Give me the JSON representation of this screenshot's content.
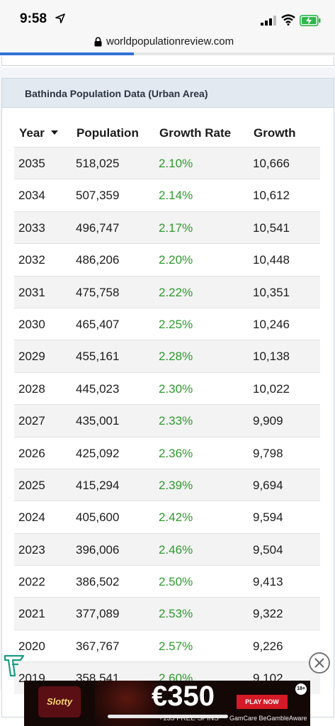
{
  "status_bar": {
    "time": "9:58"
  },
  "browser": {
    "url": "worldpopulationreview.com",
    "load_progress": 0.4
  },
  "card": {
    "title": "Bathinda Population Data (Urban Area)",
    "columns": [
      "Year",
      "Population",
      "Growth Rate",
      "Growth"
    ],
    "sort_column": "Year",
    "sort_direction": "descending",
    "rows": [
      {
        "year": "2035",
        "population": "518,025",
        "rate": "2.10%",
        "growth": "10,666"
      },
      {
        "year": "2034",
        "population": "507,359",
        "rate": "2.14%",
        "growth": "10,612"
      },
      {
        "year": "2033",
        "population": "496,747",
        "rate": "2.17%",
        "growth": "10,541"
      },
      {
        "year": "2032",
        "population": "486,206",
        "rate": "2.20%",
        "growth": "10,448"
      },
      {
        "year": "2031",
        "population": "475,758",
        "rate": "2.22%",
        "growth": "10,351"
      },
      {
        "year": "2030",
        "population": "465,407",
        "rate": "2.25%",
        "growth": "10,246"
      },
      {
        "year": "2029",
        "population": "455,161",
        "rate": "2.28%",
        "growth": "10,138"
      },
      {
        "year": "2028",
        "population": "445,023",
        "rate": "2.30%",
        "growth": "10,022"
      },
      {
        "year": "2027",
        "population": "435,001",
        "rate": "2.33%",
        "growth": "9,909"
      },
      {
        "year": "2026",
        "population": "425,092",
        "rate": "2.36%",
        "growth": "9,798"
      },
      {
        "year": "2025",
        "population": "415,294",
        "rate": "2.39%",
        "growth": "9,694"
      },
      {
        "year": "2024",
        "population": "405,600",
        "rate": "2.42%",
        "growth": "9,594"
      },
      {
        "year": "2023",
        "population": "396,006",
        "rate": "2.46%",
        "growth": "9,504"
      },
      {
        "year": "2022",
        "population": "386,502",
        "rate": "2.50%",
        "growth": "9,413"
      },
      {
        "year": "2021",
        "population": "377,089",
        "rate": "2.53%",
        "growth": "9,322"
      },
      {
        "year": "2020",
        "population": "367,767",
        "rate": "2.57%",
        "growth": "9,226"
      },
      {
        "year": "2019",
        "population": "358,541",
        "rate": "2.60%",
        "growth": "9,102"
      }
    ]
  },
  "ad": {
    "brand": "Slotty VEGAS",
    "amount": "€350",
    "subtext": "+135 FREE SPINS",
    "cta": "PLAY NOW",
    "age": "18+",
    "footer": "GamCare BeGambleAware"
  },
  "colors": {
    "growth_rate": "#2e9a2e",
    "header_bg": "#e3e9f1",
    "progress": "#2f72d6"
  }
}
